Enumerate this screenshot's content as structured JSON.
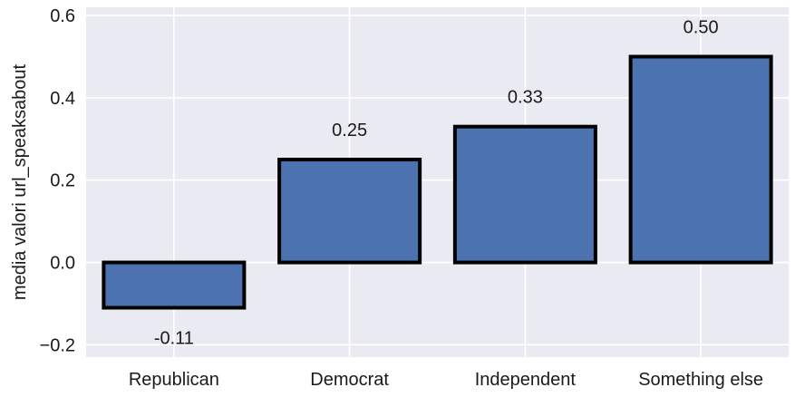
{
  "chart_data": {
    "type": "bar",
    "categories": [
      "Republican",
      "Democrat",
      "Independent",
      "Something else"
    ],
    "values": [
      -0.11,
      0.25,
      0.33,
      0.5
    ],
    "data_labels": [
      "-0.11",
      "0.25",
      "0.33",
      "0.50"
    ],
    "title": "",
    "xlabel": "",
    "ylabel": "media valori url_speaksabout",
    "ylim": [
      -0.23,
      0.62
    ],
    "yticks": [
      -0.2,
      0.0,
      0.2,
      0.4,
      0.6
    ],
    "ytick_labels": [
      "−0.2",
      "0.0",
      "0.2",
      "0.4",
      "0.6"
    ],
    "grid": true,
    "colors": {
      "background": "#eaeaf2",
      "grid": "#ffffff",
      "bar_fill": "#4c72b0",
      "bar_edge": "#000000"
    }
  }
}
